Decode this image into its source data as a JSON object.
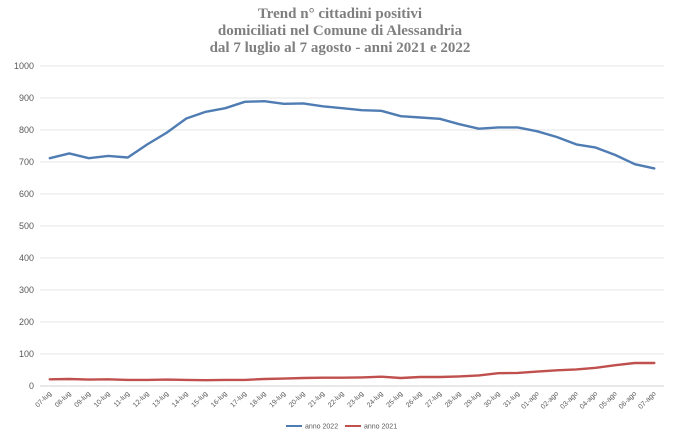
{
  "chart_data": {
    "type": "line",
    "title_lines": [
      "Trend n° cittadini positivi",
      "domiciliati nel Comune di Alessandria",
      "dal 7 luglio al 7 agosto - anni 2021 e 2022"
    ],
    "xlabel": "",
    "ylabel": "",
    "ylim": [
      0,
      1000
    ],
    "yticks": [
      0,
      100,
      200,
      300,
      400,
      500,
      600,
      700,
      800,
      900,
      1000
    ],
    "grid": true,
    "legend_position": "bottom",
    "categories": [
      "07-lug",
      "08-lug",
      "09-lug",
      "10-lug",
      "11-lug",
      "12-lug",
      "13-lug",
      "14-lug",
      "15-lug",
      "16-lug",
      "17-lug",
      "18-lug",
      "19-lug",
      "20-lug",
      "21-lug",
      "22-lug",
      "23-lug",
      "24-lug",
      "25-lug",
      "26-lug",
      "27-lug",
      "28-lug",
      "29-lug",
      "30-lug",
      "31-lug",
      "01-ago",
      "02-ago",
      "03-ago",
      "04-ago",
      "05-ago",
      "06-ago",
      "07-ago"
    ],
    "series": [
      {
        "name": "anno 2022",
        "color": "#4f7cb3",
        "values": [
          712,
          727,
          712,
          719,
          714,
          755,
          792,
          836,
          857,
          868,
          888,
          890,
          882,
          883,
          874,
          868,
          862,
          860,
          843,
          839,
          835,
          818,
          804,
          808,
          808,
          796,
          778,
          755,
          745,
          722,
          693,
          680
        ]
      },
      {
        "name": "anno 2021",
        "color": "#c0504d",
        "values": [
          21,
          22,
          20,
          21,
          19,
          19,
          20,
          19,
          18,
          19,
          19,
          22,
          23,
          25,
          26,
          26,
          27,
          29,
          25,
          28,
          28,
          30,
          33,
          40,
          41,
          45,
          49,
          52,
          57,
          65,
          72,
          72
        ]
      }
    ]
  }
}
